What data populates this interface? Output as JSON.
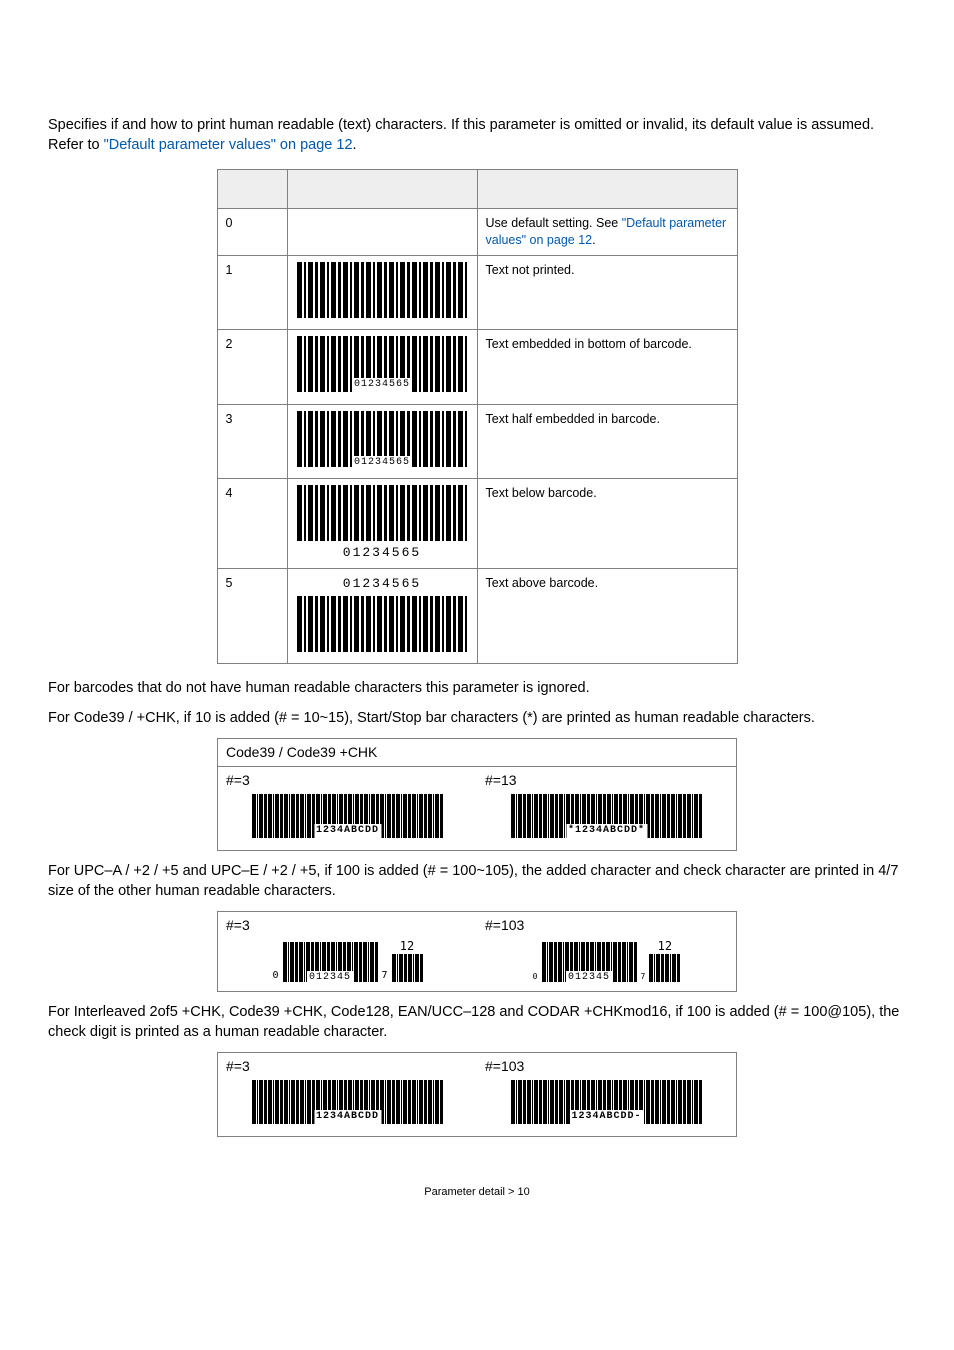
{
  "intro": {
    "text_a": "Specifies if and how to print human readable (text) characters. If this parameter is omitted or invalid, its default value is assumed. Refer to ",
    "link": "\"Default parameter values\" on page 12",
    "text_b": "."
  },
  "table": {
    "rows": [
      {
        "val": "0",
        "barcode": null,
        "desc_a": "Use default setting. See ",
        "desc_link": "\"Default parameter values\" on page 12",
        "desc_b": "."
      },
      {
        "val": "1",
        "barcode": {
          "mode": "none",
          "text": ""
        },
        "desc": "Text not printed."
      },
      {
        "val": "2",
        "barcode": {
          "mode": "embed",
          "text": "01234565"
        },
        "desc": "Text embedded in bottom of barcode."
      },
      {
        "val": "3",
        "barcode": {
          "mode": "half",
          "text": "01234565"
        },
        "desc": "Text half embedded in barcode."
      },
      {
        "val": "4",
        "barcode": {
          "mode": "below",
          "text": "01234565"
        },
        "desc": "Text below barcode."
      },
      {
        "val": "5",
        "barcode": {
          "mode": "above",
          "text": "01234565"
        },
        "desc": "Text above barcode."
      }
    ]
  },
  "p_ignored": "For barcodes that do not have human readable characters this parameter is ignored.",
  "p_code39": "For Code39 / +CHK, if 10 is added (# = 10~15), Start/Stop bar characters (*) are printed as human readable characters.",
  "code39_box": {
    "title": "Code39 / Code39 +CHK",
    "left": {
      "hash": "#=3",
      "hr": "1234ABCDD"
    },
    "right": {
      "hash": "#=13",
      "hr": "*1234ABCDD*"
    }
  },
  "p_upc": "For UPC–A / +2 / +5 and UPC–E / +2 / +5, if 100 is added (# = 100~105), the added character and check character are printed in 4/7 size of the other human readable characters.",
  "upc_box": {
    "left": {
      "hash": "#=3",
      "lead": "0",
      "main": "012345",
      "trail": "7",
      "ext": "12"
    },
    "right": {
      "hash": "#=103",
      "lead": "0",
      "main": "012345",
      "trail": "7",
      "ext": "12"
    }
  },
  "p_i2of5": "For Interleaved 2of5 +CHK, Code39 +CHK, Code128, EAN/UCC–128 and CODAR +CHKmod16, if 100 is added (# = 100@105), the check digit is printed as a human readable character.",
  "i2of5_box": {
    "left": {
      "hash": "#=3",
      "hr": "1234ABCDD"
    },
    "right": {
      "hash": "#=103",
      "hr": "1234ABCDD-"
    }
  },
  "footer": {
    "text": "Parameter detail > 10"
  },
  "colors": {
    "link": "#0058b0",
    "border": "#808080",
    "headerbg": "#eeeeee"
  }
}
